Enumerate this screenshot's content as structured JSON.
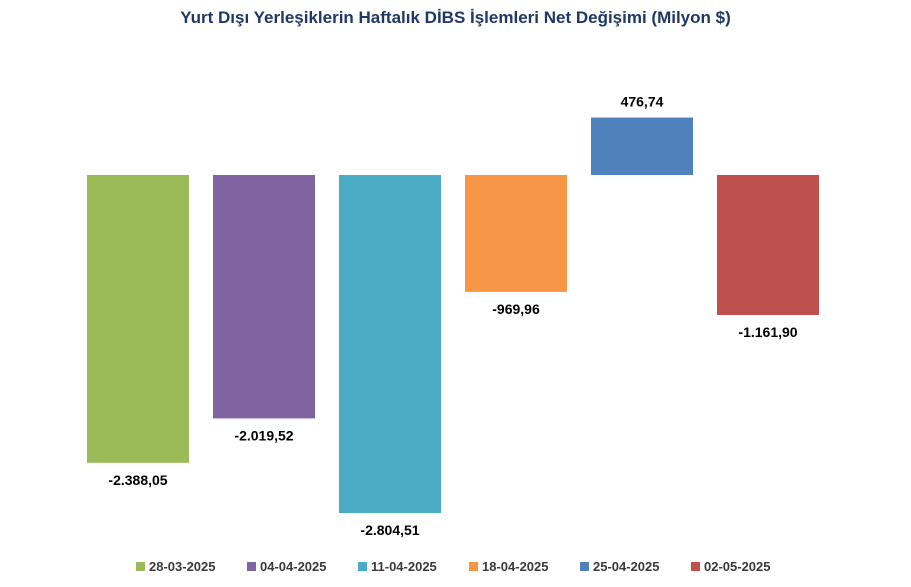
{
  "chart_data": {
    "type": "bar",
    "title": "Yurt Dışı Yerleşiklerin Haftalık DİBS İşlemleri Net Değişimi (Milyon $)",
    "categories": [
      "28-03-2025",
      "04-04-2025",
      "11-04-2025",
      "18-04-2025",
      "25-04-2025",
      "02-05-2025"
    ],
    "values": [
      -2388.05,
      -2019.52,
      -2804.51,
      -969.96,
      476.74,
      -1161.9
    ],
    "value_labels": [
      "-2.388,05",
      "-2.019,52",
      "-2.804,51",
      "-969,96",
      "476,74",
      "-1.161,90"
    ],
    "colors": [
      "#9bbb59",
      "#8064a2",
      "#4bacc6",
      "#f79646",
      "#4f81bd",
      "#c0504d"
    ],
    "legend_position": "bottom",
    "grid": false,
    "ylim": [
      -2804.51,
      476.74
    ]
  }
}
